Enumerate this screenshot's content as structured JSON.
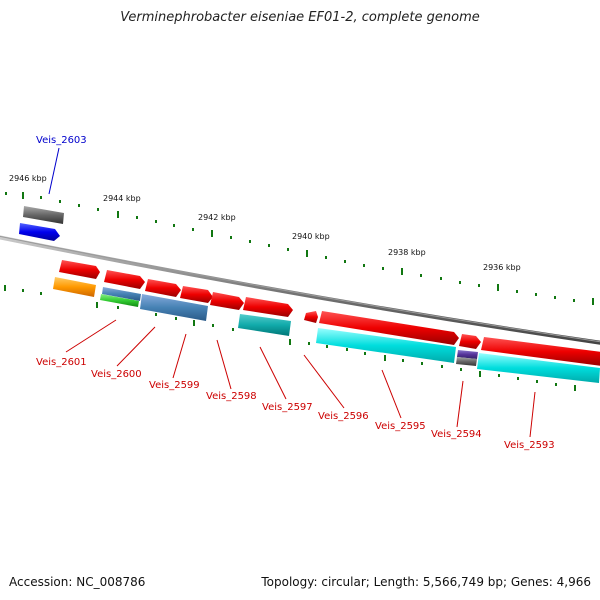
{
  "title": "Verminephrobacter eiseniae EF01-2, complete genome",
  "footer": {
    "accession": "Accession: NC_008786",
    "summary": "Topology: circular; Length: 5,566,749 bp; Genes: 4,966"
  },
  "scale_labels": [
    "2946 kbp",
    "2944 kbp",
    "2942 kbp",
    "2940 kbp",
    "2938 kbp",
    "2936 kbp"
  ],
  "highlight_gene": "Veis_2603",
  "gene_labels": [
    "Veis_2601",
    "Veis_2600",
    "Veis_2599",
    "Veis_2598",
    "Veis_2597",
    "Veis_2596",
    "Veis_2595",
    "Veis_2594",
    "Veis_2593"
  ],
  "colors": {
    "gene_forward": "#ee0000",
    "cds_cyan": "#00dddd",
    "cds_teal": "#11aaaa",
    "cds_steelblue": "#4682b4",
    "cds_orange": "#ff9900",
    "cds_green": "#33cc33",
    "cds_purple": "#553399",
    "reverse_gene": "#0000ee",
    "reverse_gray": "#666666",
    "tick_green": "#117711",
    "label_red": "#cc0000",
    "label_blue": "#0000cc"
  }
}
